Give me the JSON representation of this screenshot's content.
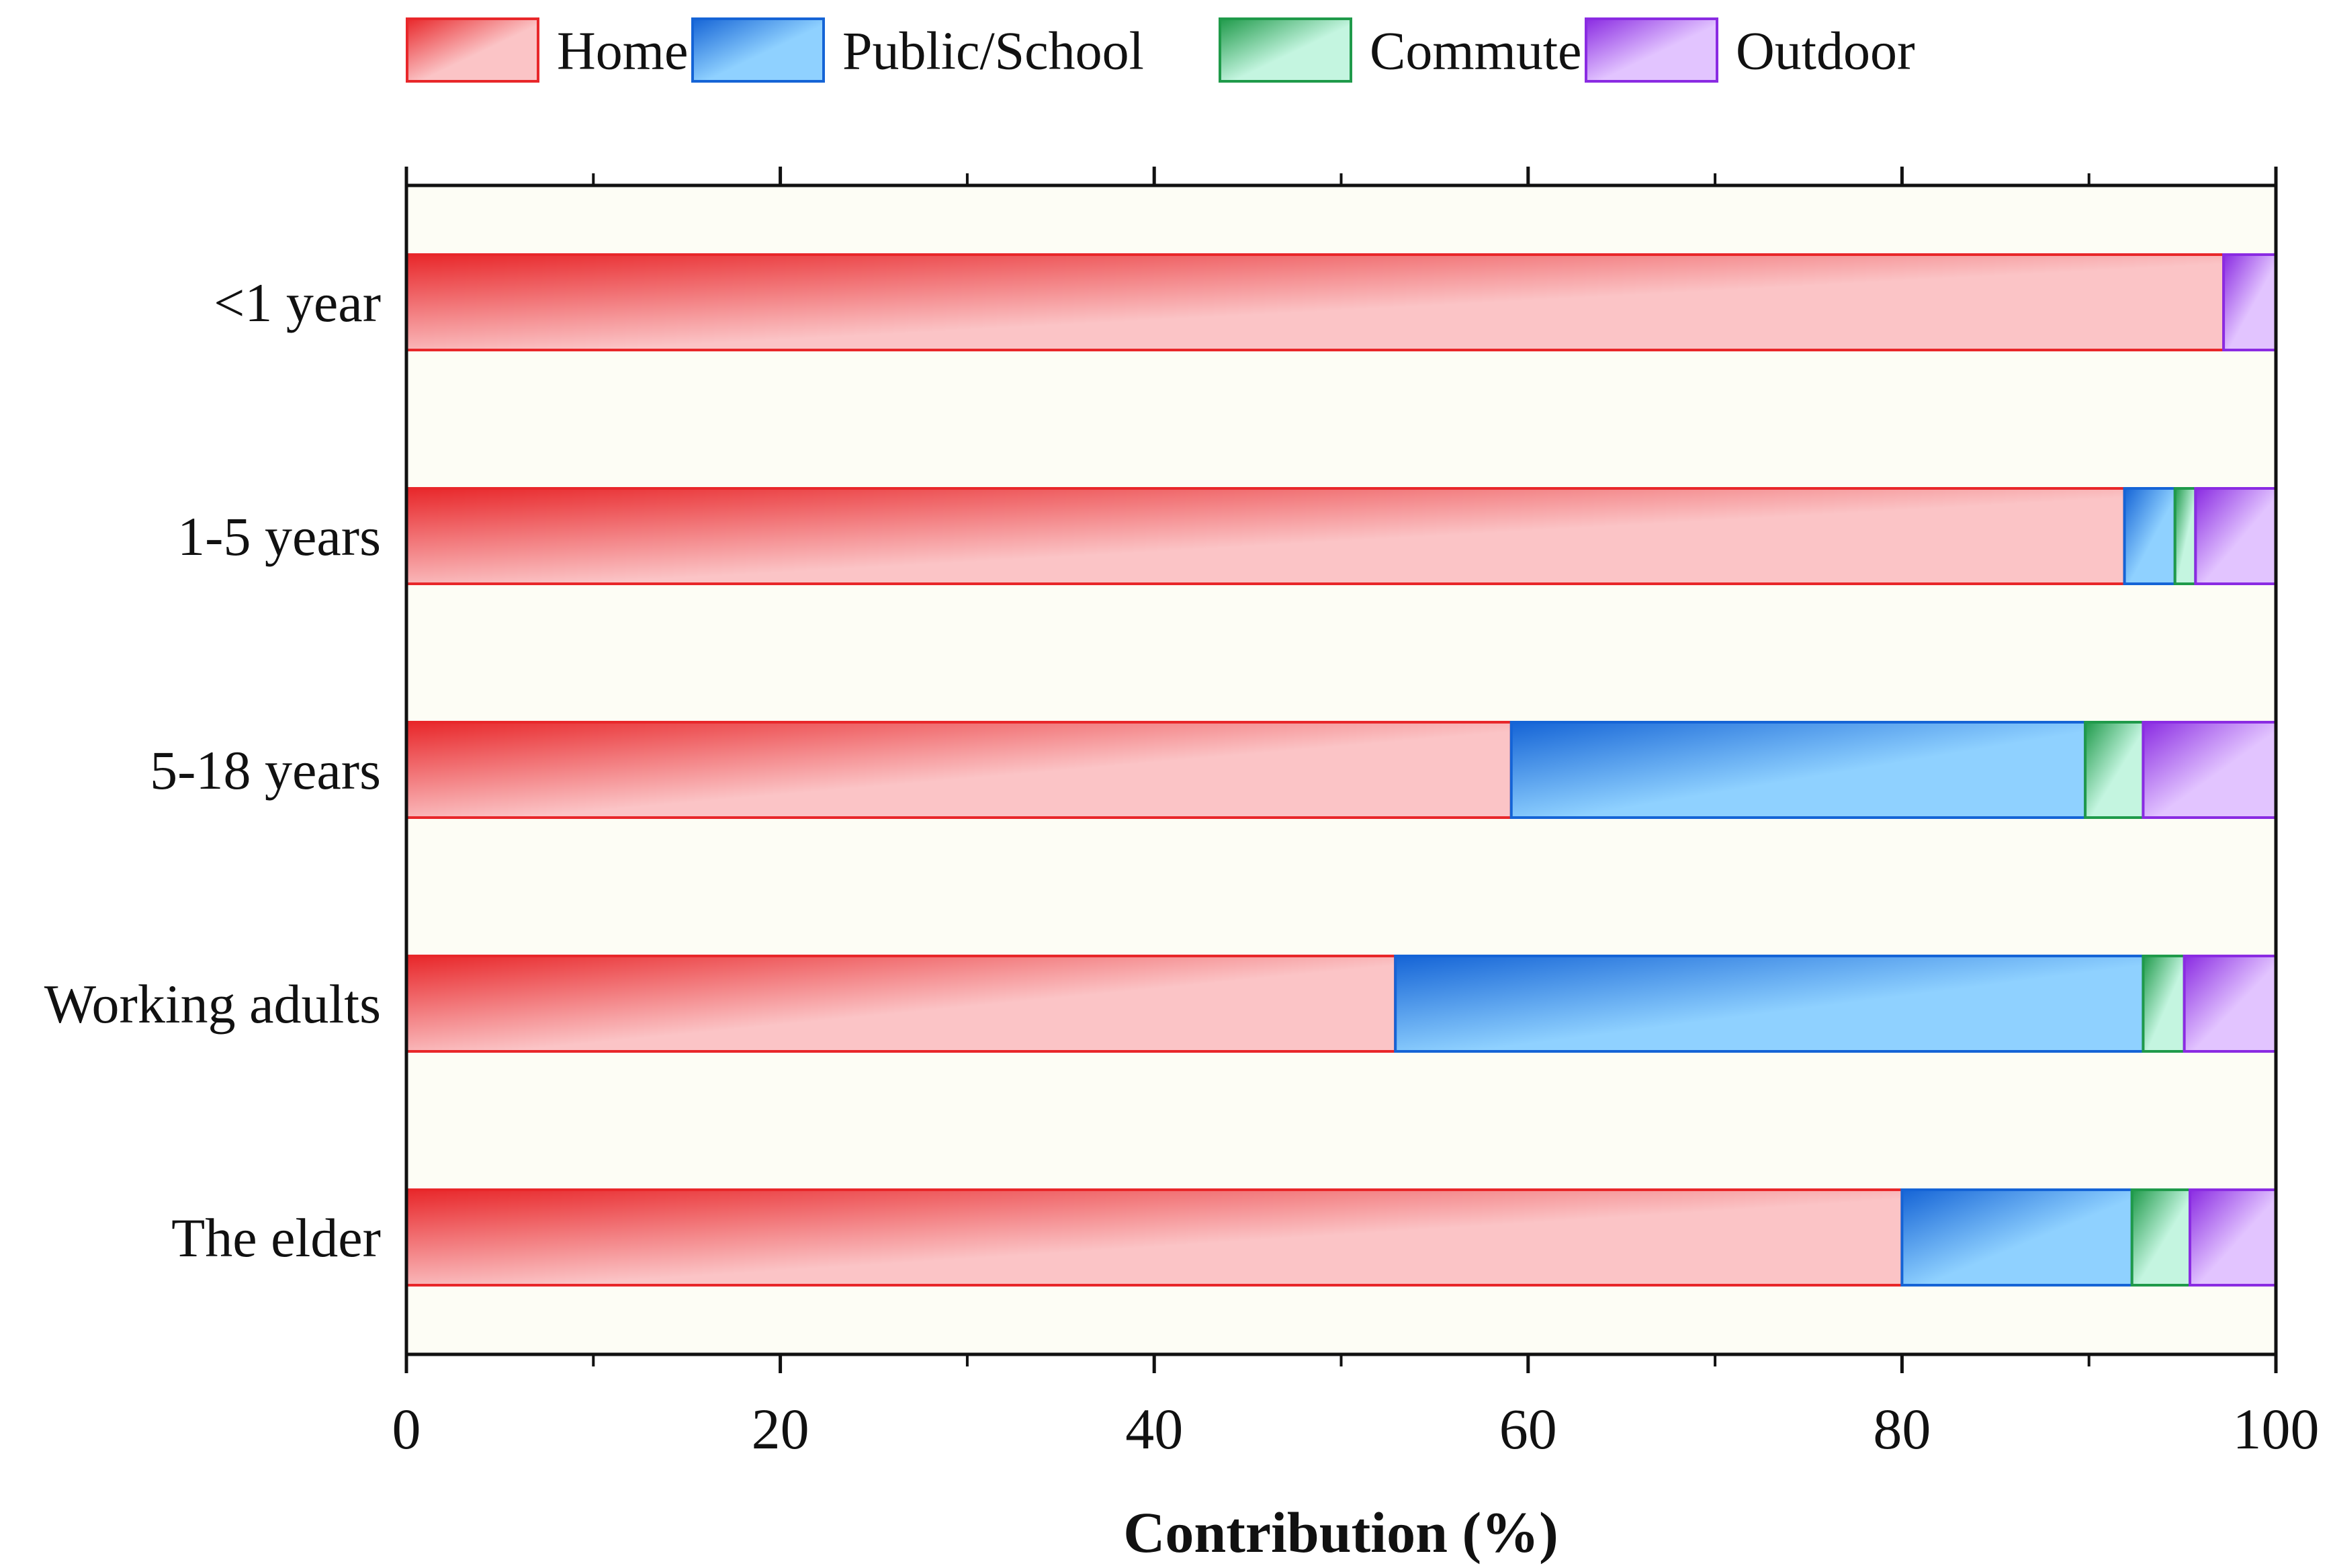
{
  "chart_data": {
    "type": "bar",
    "orientation": "horizontal",
    "stacked": true,
    "title": "",
    "xlabel": "Contribution (%)",
    "ylabel": "",
    "xlim": [
      0,
      100
    ],
    "xticks": [
      0,
      20,
      40,
      60,
      80,
      100
    ],
    "xtick_labels": [
      "0",
      "20",
      "40",
      "60",
      "80",
      "100"
    ],
    "grid": false,
    "legend_position": "top-center",
    "categories": [
      "<1 year",
      "1-5 years",
      "5-18 years",
      "Working adults",
      "The elder"
    ],
    "series": [
      {
        "name": "Home",
        "values": [
          97.2,
          91.9,
          59.1,
          52.9,
          80.0
        ],
        "color": "#e8272a",
        "color_light": "#fbc4c6"
      },
      {
        "name": "Public/School",
        "values": [
          0.0,
          2.7,
          30.7,
          40.0,
          12.3
        ],
        "color": "#1564d6",
        "color_light": "#8fd1ff"
      },
      {
        "name": "Commute",
        "values": [
          0.0,
          1.1,
          3.1,
          2.2,
          3.1
        ],
        "color": "#1f9a4a",
        "color_light": "#c4f5e0"
      },
      {
        "name": "Outdoor",
        "values": [
          2.8,
          4.3,
          7.1,
          4.9,
          4.6
        ],
        "color": "#8a2be2",
        "color_light": "#e2c4ff"
      }
    ]
  },
  "colors": {
    "plot_background": "#fdfdf5",
    "axis": "#111111"
  }
}
